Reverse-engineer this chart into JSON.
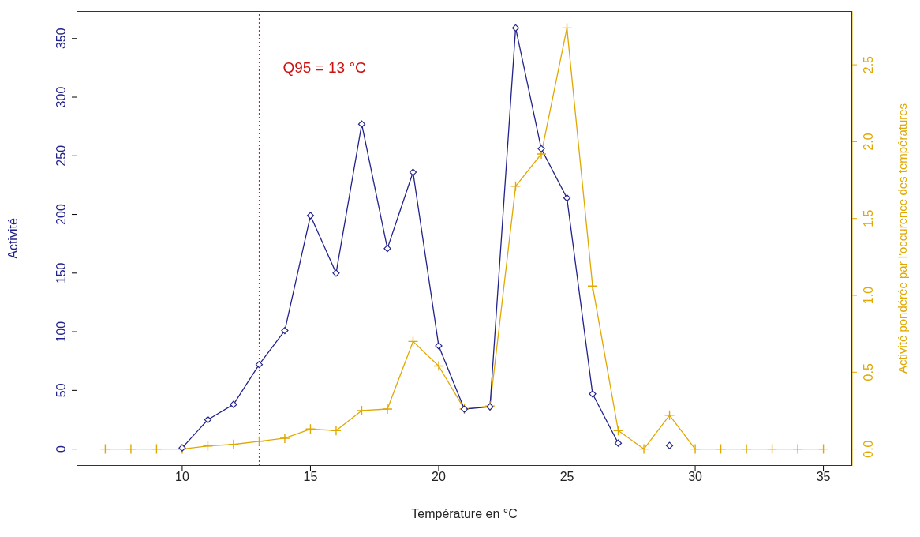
{
  "chart_data": {
    "type": "line",
    "xlabel": "Température en °C",
    "ylabel": "Activité",
    "y2label": "Activité pondérée par l'occurence des températures",
    "x": [
      7,
      8,
      9,
      10,
      11,
      12,
      13,
      14,
      15,
      16,
      17,
      18,
      19,
      20,
      21,
      22,
      23,
      24,
      25,
      26,
      27,
      28,
      29,
      30,
      31,
      32,
      33,
      34,
      35
    ],
    "series": [
      {
        "color": "#22228b",
        "marker": "diamond",
        "values": [
          null,
          null,
          null,
          1,
          25,
          38,
          72,
          101,
          199,
          150,
          277,
          171,
          236,
          88,
          34,
          36,
          359,
          256,
          214,
          47,
          5,
          null,
          3,
          null,
          null,
          null,
          null,
          null,
          null
        ]
      },
      {
        "color": "#e0a800",
        "marker": "cross",
        "axis": "y2",
        "values": [
          0,
          0,
          0,
          0,
          0.02,
          0.03,
          0.05,
          0.07,
          0.13,
          0.12,
          0.25,
          0.26,
          0.7,
          0.54,
          0.26,
          0.28,
          1.71,
          1.92,
          2.74,
          1.06,
          0.12,
          0,
          0.22,
          0,
          0,
          0,
          0,
          0,
          0
        ]
      }
    ],
    "xlim": [
      5.88,
      36.12
    ],
    "xticks": [
      10,
      15,
      20,
      25,
      30,
      35
    ],
    "ylim": [
      -14.4,
      373.4
    ],
    "yticks": [
      0,
      50,
      100,
      150,
      200,
      250,
      300,
      350
    ],
    "y2lim": [
      -0.11,
      2.85
    ],
    "y2ticks": [
      {
        "value": 0,
        "label": "0.0"
      },
      0.5,
      {
        "value": 1,
        "label": "1.0"
      },
      1.5,
      {
        "value": 2,
        "label": "2.0"
      },
      2.5
    ],
    "ref_lines": [
      {
        "axis": "x",
        "value": 13,
        "label": "Q95 = 13 °C",
        "color": "#cc1111",
        "line_style": "dotted"
      }
    ],
    "line_style": "solid"
  }
}
